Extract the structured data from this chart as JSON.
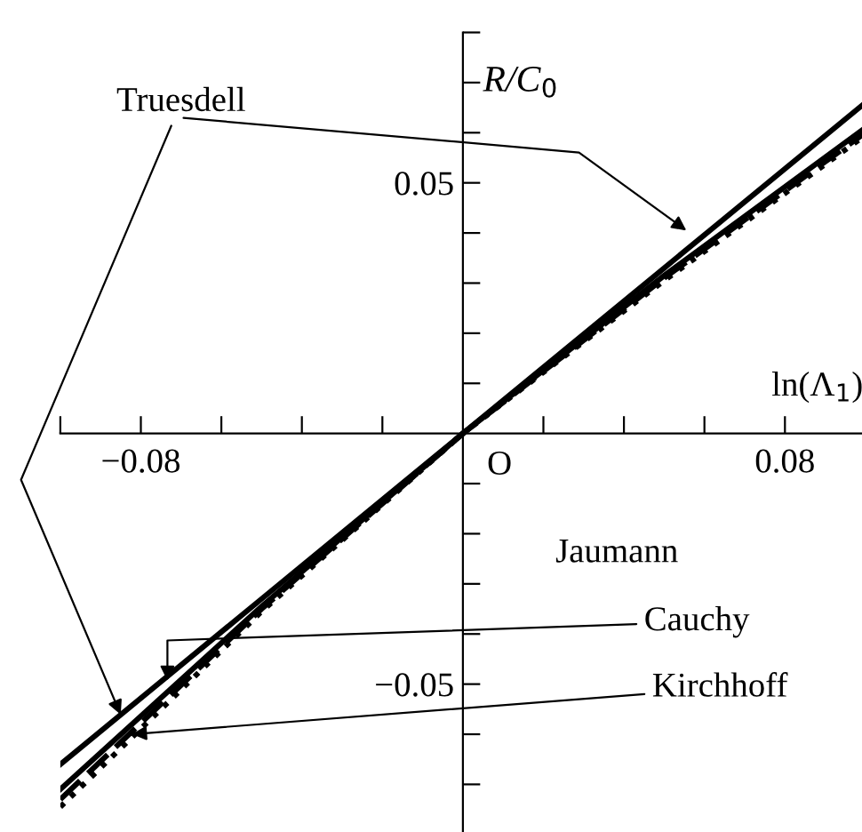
{
  "chart_data": {
    "type": "line",
    "xlabel": "ln(Λ$_{1}$)",
    "ylabel": "R/C$_{0}$",
    "x": [
      -0.1,
      -0.05,
      0,
      0.05,
      0.1
    ],
    "series": [
      {
        "color": "#000000",
        "values": [
          -0.066,
          -0.033,
          0,
          0.033,
          0.066
        ],
        "line_style": "solid"
      },
      {
        "color": "#000000",
        "values": [
          -0.071,
          -0.0345,
          0,
          0.0315,
          0.061
        ],
        "line_style": "solid"
      },
      {
        "color": "#000000",
        "values": [
          -0.073,
          -0.035,
          0,
          0.031,
          0.06
        ],
        "line_style": "dashed"
      },
      {
        "color": "#000000",
        "values": [
          -0.0745,
          -0.0355,
          0,
          0.0305,
          0.0595
        ],
        "line_style": "dotted"
      }
    ],
    "xlim": [
      -0.1,
      0.1
    ],
    "ylim": [
      -0.08,
      0.08
    ],
    "xticks": [
      {
        "value": -0.1,
        "label": null
      },
      {
        "value": -0.08,
        "label": "−0.08"
      },
      {
        "value": -0.06,
        "label": null
      },
      {
        "value": -0.04,
        "label": null
      },
      {
        "value": -0.02,
        "label": null
      },
      {
        "value": 0.02,
        "label": null
      },
      {
        "value": 0.04,
        "label": null
      },
      {
        "value": 0.06,
        "label": null
      },
      {
        "value": 0.08,
        "label": "0.08"
      }
    ],
    "yticks": [
      {
        "value": -0.08,
        "label": null
      },
      {
        "value": -0.07,
        "label": null
      },
      {
        "value": -0.06,
        "label": null
      },
      {
        "value": -0.05,
        "label": "−0.05"
      },
      {
        "value": -0.04,
        "label": null
      },
      {
        "value": -0.03,
        "label": null
      },
      {
        "value": -0.02,
        "label": null
      },
      {
        "value": -0.01,
        "label": null
      },
      {
        "value": 0.01,
        "label": null
      },
      {
        "value": 0.02,
        "label": null
      },
      {
        "value": 0.03,
        "label": null
      },
      {
        "value": 0.04,
        "label": null
      },
      {
        "value": 0.05,
        "label": "0.05"
      },
      {
        "value": 0.06,
        "label": null
      },
      {
        "value": 0.07,
        "label": null
      },
      {
        "value": 0.08,
        "label": null
      }
    ],
    "annotations": [
      {
        "text": "Truesdell",
        "x": -0.085,
        "y": -0.0561
      },
      {
        "text": "Cauchy",
        "x": -0.0734,
        "y": -0.0493
      },
      {
        "text": "Kirchhoff",
        "x": -0.0822,
        "y": -0.06
      },
      "Jaumann",
      "O"
    ],
    "grid": false,
    "legend": false,
    "marker": "none"
  }
}
